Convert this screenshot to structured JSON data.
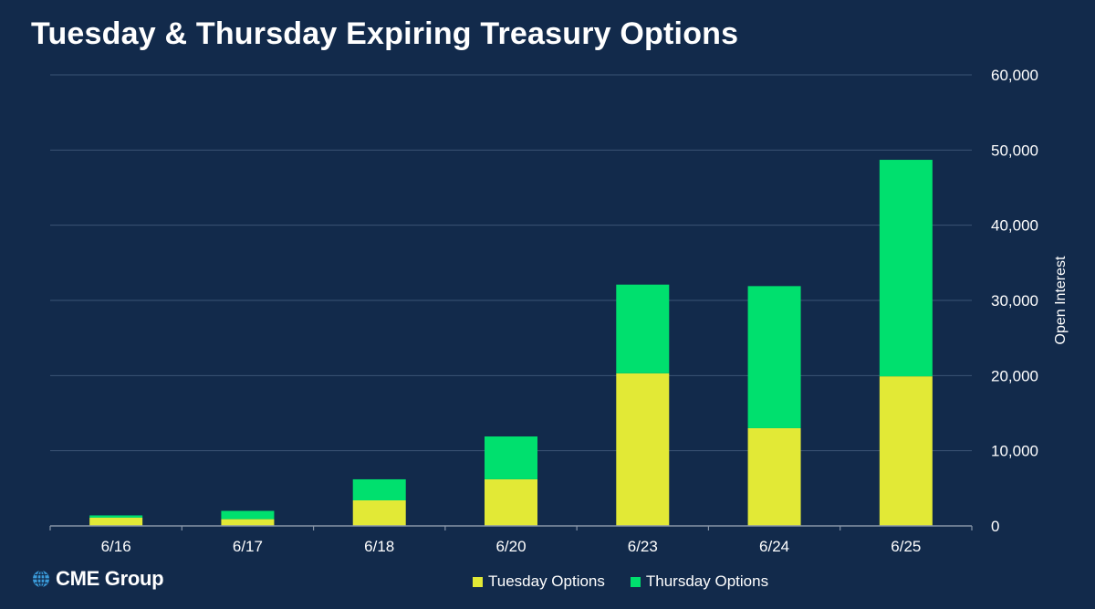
{
  "title": "Tuesday & Thursday Expiring Treasury Options",
  "logo_text": "CME Group",
  "colors": {
    "background": "#122a4b",
    "gridline": "#3b5474",
    "axis": "#8795a8",
    "tuesday": "#e2e936",
    "thursday": "#00e06e",
    "logo_globe": "#3a9ad9"
  },
  "chart_data": {
    "type": "bar",
    "stacked": true,
    "categories": [
      "6/16",
      "6/17",
      "6/18",
      "6/20",
      "6/23",
      "6/24",
      "6/25"
    ],
    "series": [
      {
        "name": "Tuesday Options",
        "values": [
          1100,
          900,
          3400,
          6200,
          20300,
          13000,
          19900
        ]
      },
      {
        "name": "Thursday Options",
        "values": [
          300,
          1100,
          2800,
          5700,
          11800,
          18900,
          28800
        ]
      }
    ],
    "ylabel": "Open Interest",
    "ylim": [
      0,
      60000
    ],
    "yticks": [
      0,
      10000,
      20000,
      30000,
      40000,
      50000,
      60000
    ],
    "ytick_labels": [
      "0",
      "10,000",
      "20,000",
      "30,000",
      "40,000",
      "50,000",
      "60,000"
    ],
    "y_axis_side": "right",
    "grid": true,
    "legend": "bottom-center"
  }
}
